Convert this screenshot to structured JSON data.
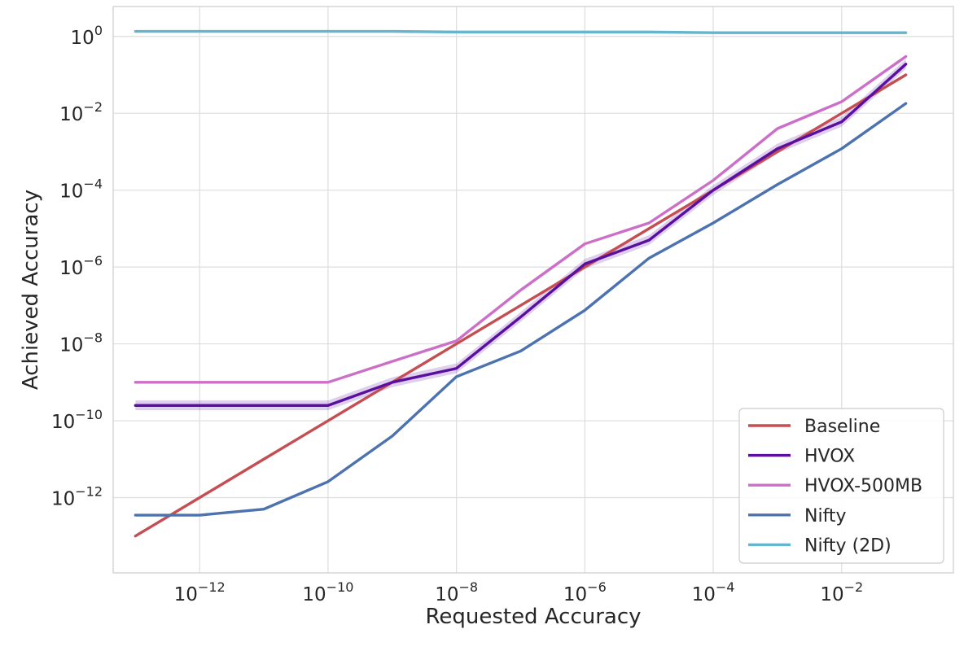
{
  "chart_data": {
    "type": "line",
    "title": "",
    "xlabel": "Requested Accuracy",
    "ylabel": "Achieved Accuracy",
    "xscale": "log",
    "yscale": "log",
    "xlim": [
      4.5e-14,
      0.55
    ],
    "ylim": [
      1.1e-14,
      6
    ],
    "xtick_exponents": [
      -12,
      -10,
      -8,
      -6,
      -4,
      -2
    ],
    "ytick_exponents": [
      -12,
      -10,
      -8,
      -6,
      -4,
      -2,
      0
    ],
    "grid": true,
    "legend_position": "lower right",
    "x": [
      1e-13,
      1e-12,
      1e-11,
      1e-10,
      1e-09,
      1e-08,
      1e-07,
      1e-06,
      1e-05,
      0.0001,
      0.001,
      0.01,
      0.1
    ],
    "series": [
      {
        "name": "Baseline",
        "color": "#c44e52",
        "values": [
          1e-13,
          1e-12,
          1e-11,
          1e-10,
          1e-09,
          1e-08,
          1e-07,
          1e-06,
          1e-05,
          0.0001,
          0.001,
          0.01,
          0.1
        ]
      },
      {
        "name": "HVOX",
        "color": "#5b0fa0",
        "band": [
          0.75,
          1.35
        ],
        "values": [
          2.5e-10,
          2.5e-10,
          2.5e-10,
          2.5e-10,
          1e-09,
          2.3e-09,
          5e-08,
          1.2e-06,
          5e-06,
          0.0001,
          0.0012,
          0.006,
          0.19
        ]
      },
      {
        "name": "HVOX-500MB",
        "color": "#cc6fc8",
        "values": [
          1e-09,
          1e-09,
          1e-09,
          1e-09,
          3.5e-09,
          1.2e-08,
          2.5e-07,
          4e-06,
          1.4e-05,
          0.00018,
          0.004,
          0.02,
          0.3
        ]
      },
      {
        "name": "Nifty",
        "color": "#4c72b0",
        "values": [
          3.5e-13,
          3.5e-13,
          5e-13,
          2.6e-12,
          4e-11,
          1.4e-09,
          6.5e-09,
          7.5e-08,
          1.7e-06,
          1.4e-05,
          0.00014,
          0.0012,
          0.018
        ]
      },
      {
        "name": "Nifty (2D)",
        "color": "#64b5cd",
        "values": [
          1.35,
          1.35,
          1.35,
          1.35,
          1.35,
          1.3,
          1.3,
          1.3,
          1.3,
          1.25,
          1.25,
          1.25,
          1.25
        ]
      }
    ]
  }
}
